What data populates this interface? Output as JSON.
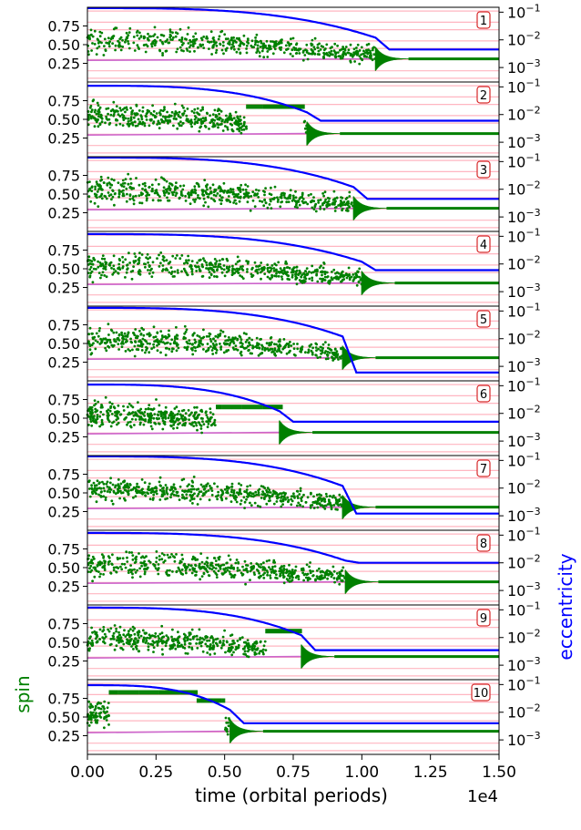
{
  "chart_data": {
    "type": "scatter",
    "layout": "10 stacked panels sharing x axis",
    "xlabel": "time (orbital periods)",
    "x_multiplier": "1e4",
    "xlim": [
      0.0,
      1.5
    ],
    "x_ticks": [
      "0.00",
      "0.25",
      "0.50",
      "0.75",
      "1.00",
      "1.25",
      "1.50"
    ],
    "ylabel_left": "spin",
    "ylabel_left_color": "#008000",
    "ylabel_right": "eccentricity",
    "ylabel_right_color": "#0000ff",
    "y_left_lim": [
      0.0,
      1.0
    ],
    "y_left_ticks": [
      "0.25",
      "0.50",
      "0.75"
    ],
    "y_right_scale": "log",
    "y_right_lim": [
      0.0003,
      0.15
    ],
    "y_right_ticks": [
      {
        "base": "10",
        "exp": "−1"
      },
      {
        "base": "10",
        "exp": "−2"
      },
      {
        "base": "10",
        "exp": "−3"
      }
    ],
    "background_lines": {
      "color": "#ffb6c1",
      "y_values": [
        0.05,
        0.15,
        0.3,
        0.45,
        0.55,
        0.7,
        0.8,
        0.95
      ]
    },
    "colors": {
      "spin": "#008000",
      "eccentricity": "#0000ff",
      "trend": "#cc66cc",
      "frame": "#000000",
      "label_box": "#d62728"
    },
    "panels": [
      {
        "label": "1",
        "e0": 0.14,
        "t_transition": 1.05,
        "e_final": 0.0045,
        "spin_final": 0.31,
        "capture_start": null,
        "capture_end": null,
        "capture_level": null
      },
      {
        "label": "2",
        "e0": 0.11,
        "t_transition": 0.8,
        "e_final": 0.006,
        "spin_final": 0.31,
        "capture_start": 0.58,
        "capture_end": 0.79,
        "capture_level": 0.67
      },
      {
        "label": "3",
        "e0": 0.14,
        "t_transition": 0.97,
        "e_final": 0.0045,
        "spin_final": 0.31,
        "capture_start": null,
        "capture_end": null,
        "capture_level": null
      },
      {
        "label": "4",
        "e0": 0.12,
        "t_transition": 1.0,
        "e_final": 0.006,
        "spin_final": 0.31,
        "capture_start": null,
        "capture_end": null,
        "capture_level": null
      },
      {
        "label": "5",
        "e0": 0.13,
        "t_transition": 0.93,
        "e_final": 0.0006,
        "spin_final": 0.31,
        "capture_start": null,
        "capture_end": null,
        "capture_level": null
      },
      {
        "label": "6",
        "e0": 0.11,
        "t_transition": 0.7,
        "e_final": 0.005,
        "spin_final": 0.31,
        "capture_start": 0.47,
        "capture_end": 0.71,
        "capture_level": 0.65
      },
      {
        "label": "7",
        "e0": 0.14,
        "t_transition": 0.93,
        "e_final": 0.0012,
        "spin_final": 0.31,
        "capture_start": null,
        "capture_end": null,
        "capture_level": null
      },
      {
        "label": "8",
        "e0": 0.12,
        "t_transition": 0.94,
        "e_final": 0.01,
        "spin_final": 0.31,
        "capture_start": null,
        "capture_end": null,
        "capture_level": null
      },
      {
        "label": "9",
        "e0": 0.12,
        "t_transition": 0.78,
        "e_final": 0.0035,
        "spin_final": 0.31,
        "capture_start": 0.65,
        "capture_end": 0.78,
        "capture_level": 0.65
      },
      {
        "label": "10",
        "e0": 0.095,
        "t_transition": 0.52,
        "e_final": 0.004,
        "spin_final": 0.31,
        "capture_start": 0.08,
        "capture_end": 0.4,
        "capture_level": 0.83,
        "capture2_start": 0.4,
        "capture2_end": 0.5,
        "capture2_level": 0.72
      }
    ]
  }
}
